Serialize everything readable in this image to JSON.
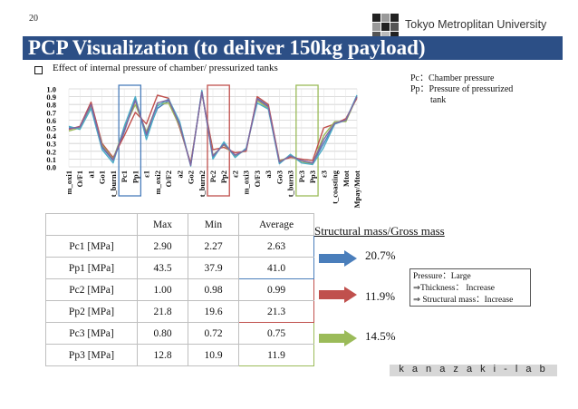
{
  "page_number": "20",
  "university": "Tokyo Metroplitan University",
  "title": "PCP Visualization (to deliver 150kg payload)",
  "subtitle": "Effect of internal pressure of chamber/ pressurized tanks",
  "notes": {
    "pc": "Pc：Chamber pressure",
    "pp_line1": "Pp：Pressure of pressurized",
    "pp_line2": "tank"
  },
  "chart_data": {
    "type": "line",
    "categories": [
      "m_oxi1",
      "O/F1",
      "a1",
      "Go1",
      "t_burn1",
      "Pc1",
      "Pp1",
      "ε1",
      "m_oxi2",
      "O/F2",
      "a2",
      "Go2",
      "t_burn2",
      "Pc2",
      "Pp2",
      "ε2",
      "m_oxi3",
      "O/F3",
      "a3",
      "Go3",
      "t_burn3",
      "Pc3",
      "Pp3",
      "ε3",
      "t_coasting",
      "Mtot",
      "Mpay/Mtot"
    ],
    "ylim": [
      0,
      1.0
    ],
    "yticks": [
      "0.0",
      "0.1",
      "0.2",
      "0.3",
      "0.4",
      "0.5",
      "0.6",
      "0.7",
      "0.8",
      "0.9",
      "1.0"
    ],
    "grid": true,
    "series": [
      {
        "color": "#4a7ebb",
        "values": [
          0.5,
          0.5,
          0.8,
          0.25,
          0.08,
          0.45,
          0.88,
          0.4,
          0.75,
          0.85,
          0.55,
          0.02,
          0.97,
          0.12,
          0.3,
          0.15,
          0.22,
          0.88,
          0.78,
          0.05,
          0.15,
          0.08,
          0.05,
          0.3,
          0.55,
          0.6,
          0.9
        ]
      },
      {
        "color": "#c0504d",
        "values": [
          0.48,
          0.52,
          0.83,
          0.3,
          0.12,
          0.4,
          0.7,
          0.55,
          0.92,
          0.88,
          0.5,
          0.05,
          0.95,
          0.22,
          0.25,
          0.18,
          0.2,
          0.9,
          0.8,
          0.08,
          0.12,
          0.1,
          0.08,
          0.5,
          0.55,
          0.62,
          0.88
        ]
      },
      {
        "color": "#9bbb59",
        "values": [
          0.46,
          0.5,
          0.78,
          0.28,
          0.1,
          0.5,
          0.8,
          0.45,
          0.8,
          0.82,
          0.52,
          0.03,
          0.96,
          0.15,
          0.28,
          0.14,
          0.22,
          0.85,
          0.75,
          0.07,
          0.14,
          0.06,
          0.04,
          0.4,
          0.58,
          0.58,
          0.9
        ]
      },
      {
        "color": "#4bacc6",
        "values": [
          0.52,
          0.48,
          0.75,
          0.22,
          0.05,
          0.52,
          0.9,
          0.35,
          0.78,
          0.87,
          0.58,
          0.01,
          0.98,
          0.1,
          0.32,
          0.12,
          0.24,
          0.82,
          0.74,
          0.04,
          0.16,
          0.05,
          0.03,
          0.25,
          0.55,
          0.6,
          0.92
        ]
      },
      {
        "color": "#8064a2",
        "values": [
          0.49,
          0.51,
          0.8,
          0.26,
          0.09,
          0.47,
          0.85,
          0.42,
          0.82,
          0.86,
          0.54,
          0.02,
          0.96,
          0.14,
          0.29,
          0.15,
          0.22,
          0.87,
          0.77,
          0.06,
          0.14,
          0.08,
          0.05,
          0.35,
          0.56,
          0.6,
          0.9
        ]
      }
    ]
  },
  "table": {
    "headers": [
      "",
      "Max",
      "Min",
      "Average"
    ],
    "rows": [
      [
        "Pc1 [MPa]",
        "2.90",
        "2.27",
        "2.63"
      ],
      [
        "Pp1 [MPa]",
        "43.5",
        "37.9",
        "41.0"
      ],
      [
        "Pc2 [MPa]",
        "1.00",
        "0.98",
        "0.99"
      ],
      [
        "Pp2 [MPa]",
        "21.8",
        "19.6",
        "21.3"
      ],
      [
        "Pc3 [MPa]",
        "0.80",
        "0.72",
        "0.75"
      ],
      [
        "Pp3 [MPa]",
        "12.8",
        "10.9",
        "11.9"
      ]
    ]
  },
  "structural": {
    "heading": "Structural mass/Gross mass",
    "values": [
      {
        "pct": "20.7%",
        "color": "#4a7ebb"
      },
      {
        "pct": "11.9%",
        "color": "#c0504d"
      },
      {
        "pct": "14.5%",
        "color": "#9bbb59"
      }
    ]
  },
  "note_box": {
    "line1": "Pressure：Large",
    "line2": "⇒Thickness： Increase",
    "line3": "⇒ Structural mass：Increase"
  },
  "lab_name": "k a n a z a k i - l a b"
}
